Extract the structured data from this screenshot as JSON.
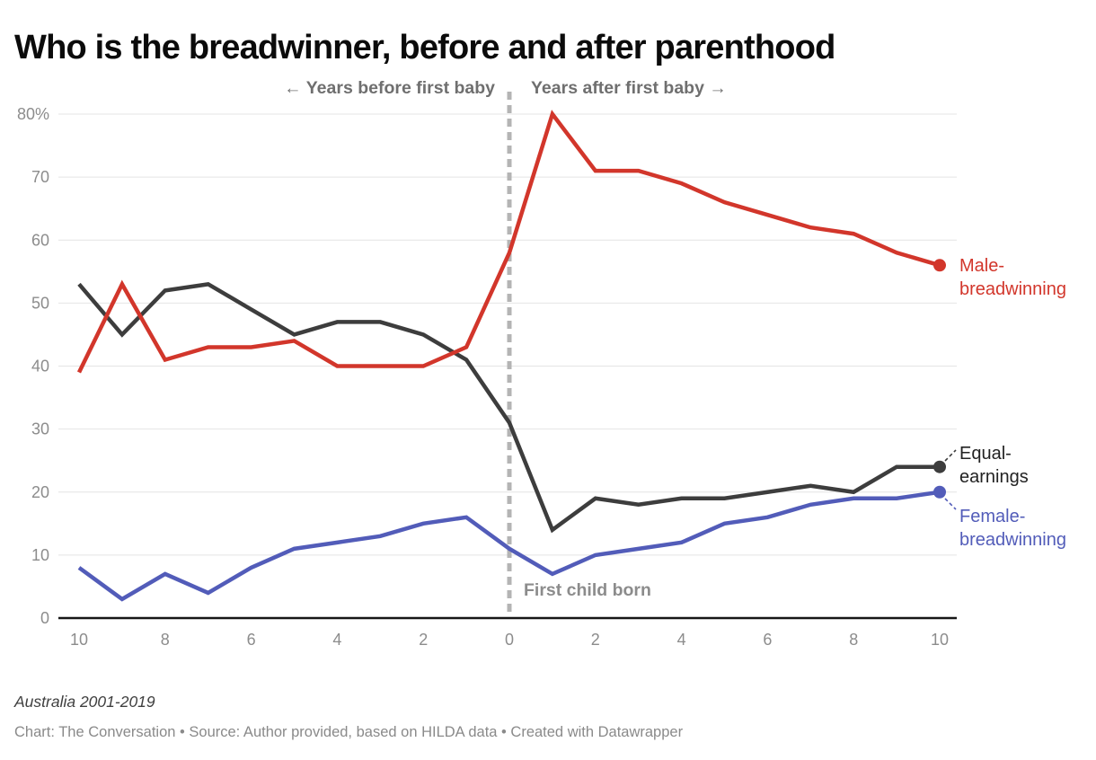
{
  "title": "Who is the breadwinner, before and after parenthood",
  "annotations": {
    "before": "← Years before first baby",
    "after": "Years after first baby →",
    "event": "First child born"
  },
  "chart_data": {
    "type": "line",
    "x": [
      -10,
      -9,
      -8,
      -7,
      -6,
      -5,
      -4,
      -3,
      -2,
      -1,
      0,
      1,
      2,
      3,
      4,
      5,
      6,
      7,
      8,
      9,
      10
    ],
    "x_axis_note": "years relative to first birth; 0 = first child born",
    "x_tick_values": [
      -10,
      -8,
      -6,
      -4,
      -2,
      0,
      2,
      4,
      6,
      8,
      10
    ],
    "x_tick_labels": [
      "10",
      "8",
      "6",
      "4",
      "2",
      "0",
      "2",
      "4",
      "6",
      "8",
      "10"
    ],
    "y_ticks": [
      0,
      10,
      20,
      30,
      40,
      50,
      60,
      70,
      80
    ],
    "y_tick_labels": [
      "0",
      "10",
      "20",
      "30",
      "40",
      "50",
      "60",
      "70",
      "80%"
    ],
    "ylim": [
      0,
      80
    ],
    "grid": "horizontal",
    "event_line_x": 0,
    "series": [
      {
        "name": "Male-breadwinning",
        "label_lines": [
          "Male-",
          "breadwinning"
        ],
        "color": "#d2362b",
        "label_color": "#d2362b",
        "values": [
          39,
          53,
          41,
          43,
          43,
          44,
          40,
          40,
          40,
          43,
          58,
          80,
          71,
          71,
          69,
          66,
          64,
          62,
          61,
          58,
          56
        ]
      },
      {
        "name": "Equal-earnings",
        "label_lines": [
          "Equal-",
          "earnings"
        ],
        "color": "#3d3d3d",
        "label_color": "#222222",
        "values": [
          53,
          45,
          52,
          53,
          49,
          45,
          47,
          47,
          45,
          41,
          31,
          14,
          19,
          18,
          19,
          19,
          20,
          21,
          20,
          24,
          24
        ]
      },
      {
        "name": "Female-breadwinning",
        "label_lines": [
          "Female-",
          "breadwinning"
        ],
        "color": "#525cb9",
        "label_color": "#525cb9",
        "values": [
          8,
          3,
          7,
          4,
          8,
          11,
          12,
          13,
          15,
          16,
          11,
          7,
          10,
          11,
          12,
          15,
          16,
          18,
          19,
          19,
          20
        ]
      }
    ],
    "colors": {
      "gridline": "#e4e4e4",
      "axis": "#161616",
      "event_line": "#b4b4b4",
      "tick_label": "#8c8c8c"
    }
  },
  "footer": {
    "note": "Australia 2001-2019",
    "credit": "Chart: The Conversation • Source: Author provided, based on HILDA data • Created with Datawrapper"
  }
}
